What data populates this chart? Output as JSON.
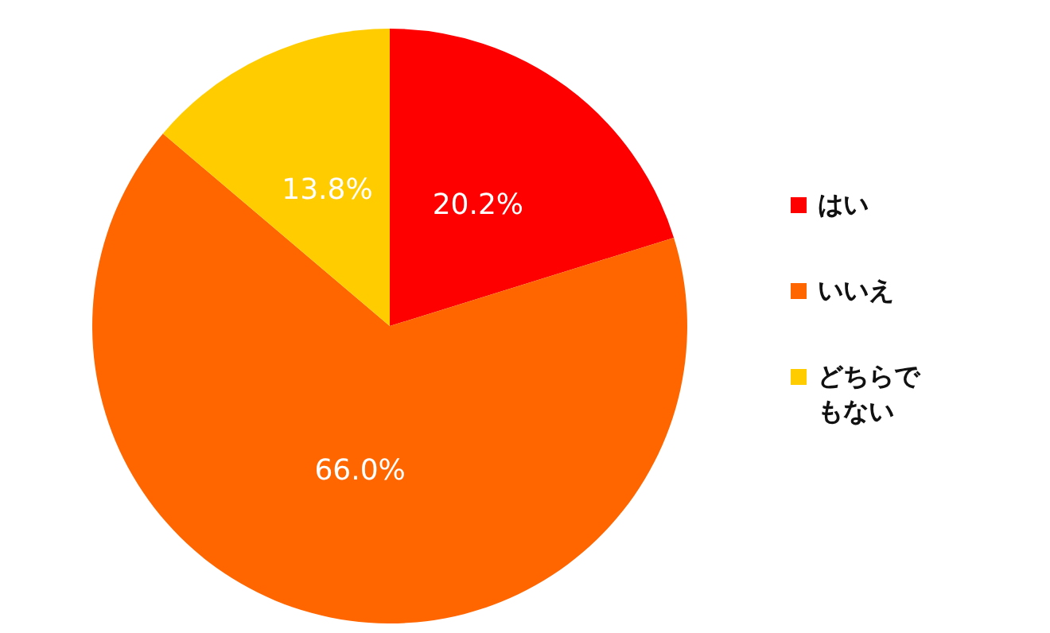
{
  "chart_data": {
    "type": "pie",
    "categories": [
      "はい",
      "いいえ",
      "どちらでもない"
    ],
    "values": [
      20.2,
      66.0,
      13.8
    ],
    "colors": [
      "#ff0000",
      "#ff6600",
      "#ffcc00"
    ],
    "value_labels": [
      "20.2%",
      "66.0%",
      "13.8%"
    ],
    "legend": "right"
  }
}
